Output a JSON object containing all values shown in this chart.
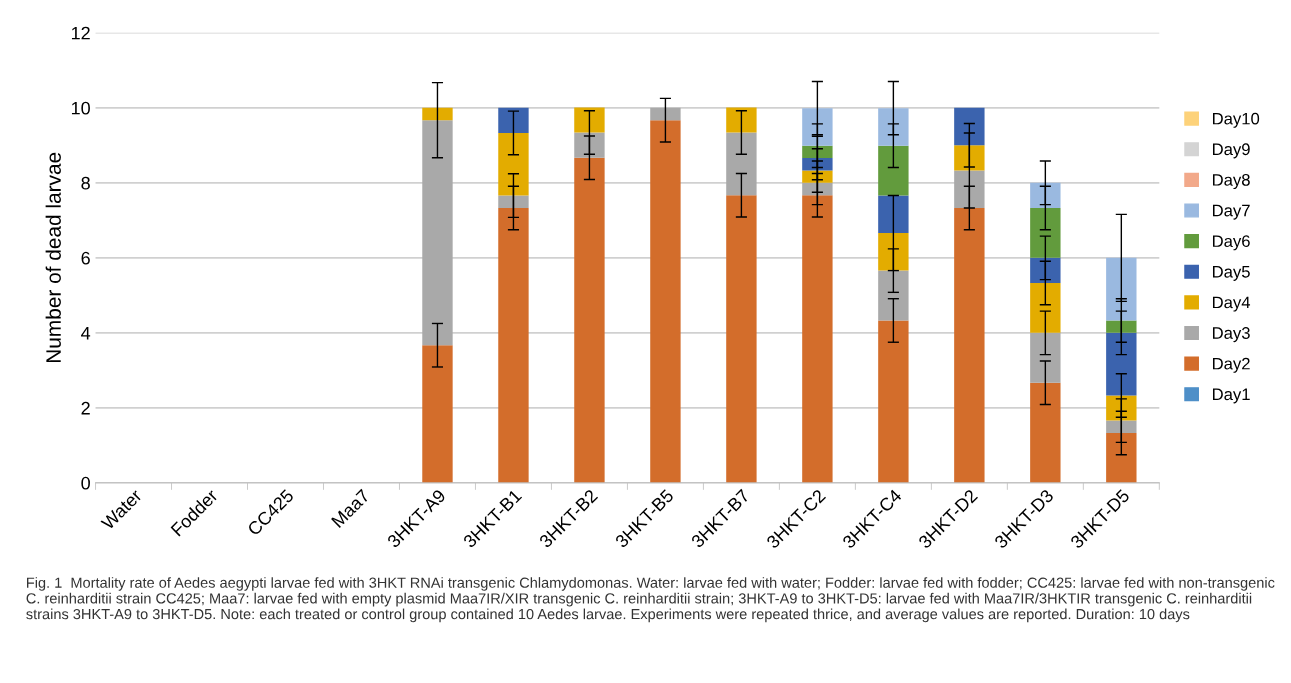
{
  "chart_data": {
    "type": "bar",
    "stacked": true,
    "ylabel": "Number of dead larvae",
    "categories": [
      "Water",
      "Fodder",
      "CC425",
      "Maa7",
      "3HKT-A9",
      "3HKT-B1",
      "3HKT-B2",
      "3HKT-B5",
      "3HKT-B7",
      "3HKT-C2",
      "3HKT-C4",
      "3HKT-D2",
      "3HKT-D3",
      "3HKT-D5"
    ],
    "series": [
      {
        "name": "Day1",
        "color": "#4e8fc8",
        "values": [
          0,
          0,
          0,
          0,
          0,
          0,
          0,
          0,
          0,
          0,
          0,
          0,
          0,
          0
        ]
      },
      {
        "name": "Day2",
        "color": "#d36d2b",
        "values": [
          0,
          0,
          0,
          0,
          3.67,
          7.33,
          8.67,
          9.67,
          7.67,
          7.67,
          4.33,
          7.33,
          2.67,
          1.33
        ],
        "errors": [
          null,
          null,
          null,
          null,
          0.58,
          0.58,
          0.58,
          0.58,
          0.58,
          0.58,
          0.58,
          0.58,
          0.58,
          0.58
        ]
      },
      {
        "name": "Day3",
        "color": "#a9a9a9",
        "values": [
          0,
          0,
          0,
          0,
          6.0,
          0.33,
          0.67,
          0.33,
          1.67,
          0.33,
          1.33,
          1.0,
          1.33,
          0.33
        ],
        "errors": [
          null,
          null,
          null,
          null,
          1.0,
          0.58,
          0.58,
          null,
          0.58,
          0.58,
          0.58,
          1.0,
          0.58,
          0.58
        ]
      },
      {
        "name": "Day4",
        "color": "#e3ac00",
        "values": [
          0,
          0,
          0,
          0,
          0.33,
          1.67,
          0.67,
          0,
          0.67,
          0.33,
          1.0,
          0.67,
          1.33,
          0.67
        ],
        "errors": [
          null,
          null,
          null,
          null,
          null,
          0.58,
          null,
          null,
          null,
          0.58,
          1.0,
          0.58,
          0.58,
          0.58
        ]
      },
      {
        "name": "Day5",
        "color": "#3b63ae",
        "values": [
          0,
          0,
          0,
          0,
          0,
          0.67,
          0,
          0,
          0,
          0.33,
          1.0,
          1.0,
          0.67,
          1.67
        ],
        "errors": [
          null,
          null,
          null,
          null,
          null,
          null,
          null,
          null,
          null,
          0.58,
          null,
          null,
          0.58,
          0.58
        ]
      },
      {
        "name": "Day6",
        "color": "#629b3d",
        "values": [
          0,
          0,
          0,
          0,
          0,
          0,
          0,
          0,
          0,
          0.33,
          1.33,
          0,
          1.33,
          0.33
        ],
        "errors": [
          null,
          null,
          null,
          null,
          null,
          null,
          null,
          null,
          null,
          0.58,
          0.58,
          null,
          0.58,
          0.58
        ]
      },
      {
        "name": "Day7",
        "color": "#9ab9e0",
        "values": [
          0,
          0,
          0,
          0,
          0,
          0,
          0,
          0,
          0,
          1.0,
          1.0,
          0,
          0.67,
          1.67
        ],
        "errors": [
          null,
          null,
          null,
          null,
          null,
          null,
          null,
          null,
          null,
          0.71,
          0.71,
          null,
          0.58,
          1.16
        ]
      },
      {
        "name": "Day8",
        "color": "#f2a98a",
        "values": [
          0,
          0,
          0,
          0,
          0,
          0,
          0,
          0,
          0,
          0,
          0,
          0,
          0,
          0
        ]
      },
      {
        "name": "Day9",
        "color": "#d4d4d4",
        "values": [
          0,
          0,
          0,
          0,
          0,
          0,
          0,
          0,
          0,
          0,
          0,
          0,
          0,
          0
        ]
      },
      {
        "name": "Day10",
        "color": "#fdd27a",
        "values": [
          0,
          0,
          0,
          0,
          0,
          0,
          0,
          0,
          0,
          0,
          0,
          0,
          0,
          0
        ]
      }
    ],
    "ylim": [
      0,
      12
    ],
    "yticks": [
      0,
      2,
      4,
      6,
      8,
      10,
      12
    ],
    "grid": "y",
    "legend": "right",
    "annotations": [
      "Fig. 1  Mortality rate of Aedes aegypti larvae fed with 3HKT RNAi transgenic Chlamydomonas. Water: larvae fed with water; Fodder: larvae fed with fodder; CC425: larvae fed with non-transgenic C. reinharditii strain CC425; Maa7: larvae fed with empty plasmid Maa7IR/XIR transgenic C. reinharditii strain; 3HKT-A9 to 3HKT-D5: larvae fed with Maa7IR/3HKTIR transgenic C. reinharditii strains 3HKT-A9 to 3HKT-D5. Note: each treated or control group contained 10 Aedes larvae. Experiments were repeated thrice, and average values are reported. Duration: 10 days"
    ]
  }
}
